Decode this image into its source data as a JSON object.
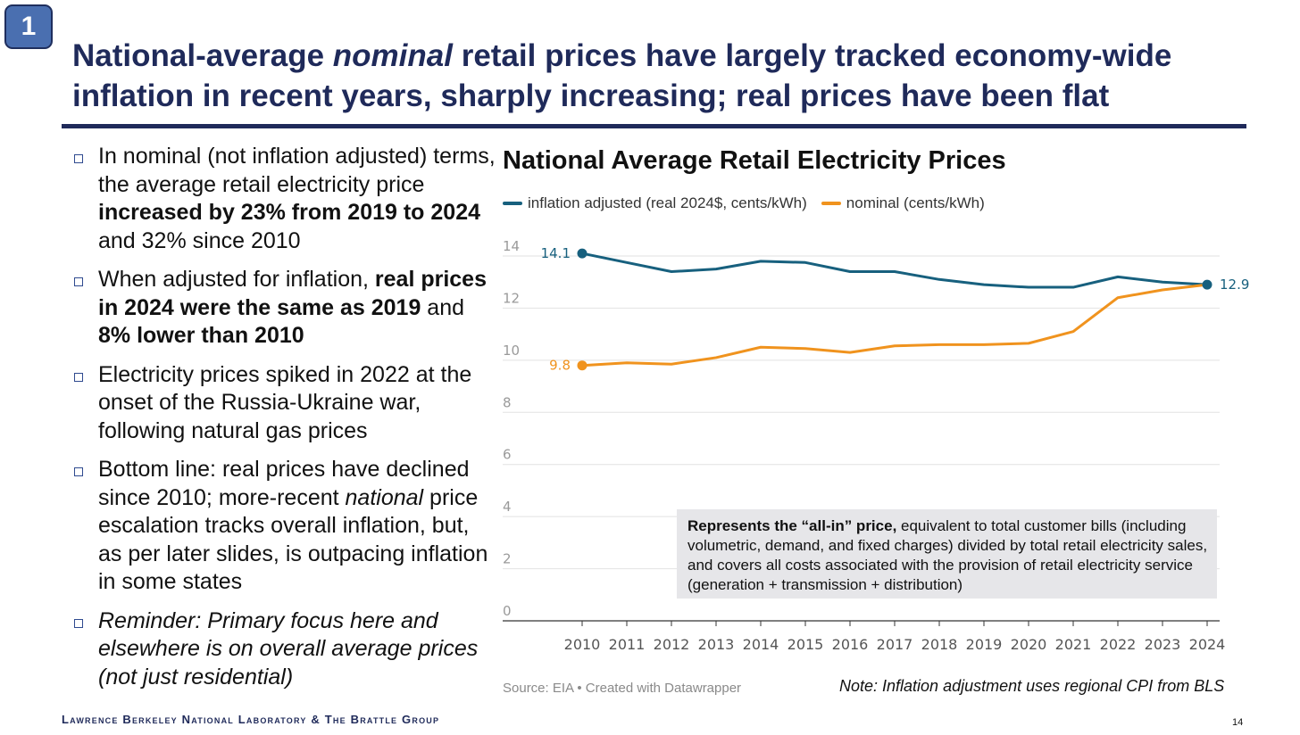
{
  "slide": {
    "badge": "1",
    "title_part1": "National-average ",
    "title_italic": "nominal",
    "title_part2": " retail prices have largely tracked economy-wide inflation in recent years, sharply increasing; real prices have been flat",
    "accent_color": "#1f2a5a",
    "footer": "Lawrence Berkeley National Laboratory & The Brattle Group",
    "page_number": "14"
  },
  "bullets": [
    {
      "t1": "In nominal (not inflation adjusted) terms, the average retail electricity price ",
      "b1": "increased by 23% from 2019 to 2024",
      "t2": " and 32% since 2010"
    },
    {
      "t1": "When adjusted for inflation, ",
      "b1": "real prices in 2024 were the same as 2019",
      "t2": " and ",
      "b2": "8% lower than 2010"
    },
    {
      "t1": "Electricity prices spiked in 2022 at the onset of the Russia-Ukraine war, following natural gas prices"
    },
    {
      "t1": "Bottom line: real prices have declined since 2010; more-recent ",
      "i1": "national",
      "t2": " price escalation tracks overall inflation, but, as per later slides, is outpacing inflation in some states"
    },
    {
      "i1": "Reminder: Primary focus here and elsewhere is on overall average prices (not just residential)"
    }
  ],
  "callout": {
    "bold": "Represents the “all-in” price,",
    "text": " equivalent to total customer bills (including volumetric, demand, and fixed charges) divided by total retail electricity sales, and covers all costs associated with the provision of retail electricity service (generation + transmission + distribution)"
  },
  "source": "Source: EIA • Created with Datawrapper",
  "note": "Note: Inflation adjustment uses regional CPI from BLS",
  "chart_data": {
    "type": "line",
    "title": "National Average Retail Electricity Prices",
    "x": [
      2010,
      2011,
      2012,
      2013,
      2014,
      2015,
      2016,
      2017,
      2018,
      2019,
      2020,
      2021,
      2022,
      2023,
      2024
    ],
    "ylim": [
      0,
      14
    ],
    "yticks": [
      0,
      2,
      4,
      6,
      8,
      10,
      12,
      14
    ],
    "grid": true,
    "legend": "top-left",
    "series": [
      {
        "name": "inflation adjusted (real 2024$, cents/kWh)",
        "color": "#17607e",
        "values": [
          14.1,
          13.75,
          13.4,
          13.5,
          13.8,
          13.75,
          13.4,
          13.4,
          13.1,
          12.9,
          12.8,
          12.8,
          13.2,
          13.0,
          12.9
        ],
        "start_label": "14.1",
        "end_label": "12.9"
      },
      {
        "name": "nominal (cents/kWh)",
        "color": "#f0931e",
        "values": [
          9.8,
          9.9,
          9.85,
          10.1,
          10.5,
          10.45,
          10.3,
          10.55,
          10.6,
          10.6,
          10.65,
          11.1,
          12.4,
          12.7,
          12.9
        ],
        "start_label": "9.8"
      }
    ]
  }
}
